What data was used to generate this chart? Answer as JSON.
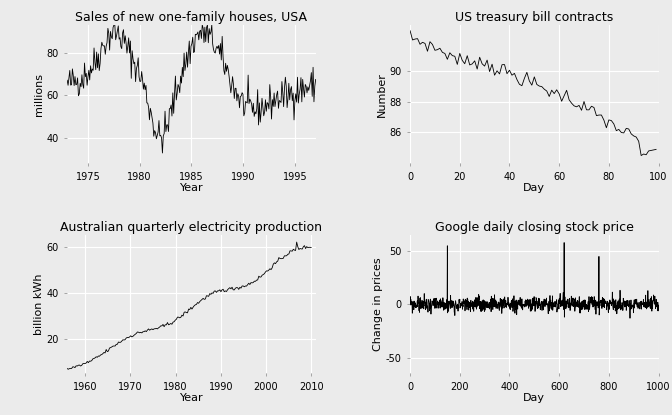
{
  "fig_width": 6.72,
  "fig_height": 4.15,
  "bg_color": "#EBEBEB",
  "line_color": "#000000",
  "grid_color": "#FFFFFF",
  "titles": [
    "Sales of new one-family houses, USA",
    "US treasury bill contracts",
    "Australian quarterly electricity production",
    "Google daily closing stock price"
  ],
  "xlabels": [
    "Year",
    "Day",
    "Year",
    "Day"
  ],
  "ylabels": [
    "millions",
    "Number",
    "billion kWh",
    "Change in prices"
  ],
  "title_fontsize": 9,
  "label_fontsize": 8,
  "tick_fontsize": 7,
  "p1_xlim": [
    1973,
    1997
  ],
  "p1_ylim": [
    28,
    93
  ],
  "p1_xticks": [
    1975,
    1980,
    1985,
    1990,
    1995
  ],
  "p1_yticks": [
    40,
    60,
    80
  ],
  "p2_xlim": [
    0,
    100
  ],
  "p2_ylim": [
    84.0,
    93.0
  ],
  "p2_xticks": [
    0,
    20,
    40,
    60,
    80,
    100
  ],
  "p2_yticks": [
    86,
    88,
    90
  ],
  "p3_xlim": [
    1956,
    2011
  ],
  "p3_ylim": [
    5,
    65
  ],
  "p3_xticks": [
    1960,
    1970,
    1980,
    1990,
    2000,
    2010
  ],
  "p3_yticks": [
    20,
    40,
    60
  ],
  "p4_xlim": [
    0,
    1000
  ],
  "p4_ylim": [
    -65,
    65
  ],
  "p4_xticks": [
    0,
    200,
    400,
    600,
    800,
    1000
  ],
  "p4_yticks": [
    -50,
    0,
    50
  ]
}
